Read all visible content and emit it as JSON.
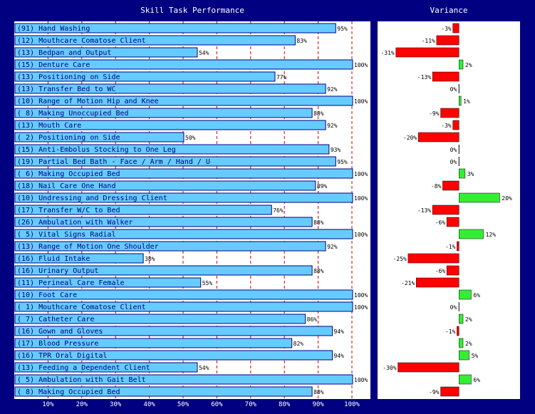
{
  "chart_data": [
    {
      "type": "bar",
      "title": "Skill Task Performance",
      "orientation": "horizontal",
      "xlim": [
        0,
        100
      ],
      "x_ticks": [
        "10%",
        "20%",
        "30%",
        "40%",
        "50%",
        "60%",
        "70%",
        "80%",
        "90%",
        "100%"
      ],
      "bar_color": "#66ccff",
      "gridline_color": "#cc0000",
      "categories": [
        "(91) Hand Washing",
        "(12) Mouthcare Comatose Client",
        "(13) Bedpan and Output",
        "(15) Denture Care",
        "(13) Positioning on Side",
        "(13) Transfer Bed to WC",
        "(10) Range of Motion Hip and Knee",
        "( 8) Making Unoccupied Bed",
        "(13) Mouth Care",
        "( 2) Positioning on Side",
        "(15) Anti-Embolus Stocking to One Leg",
        "(19) Partial Bed Bath - Face / Arm / Hand / U",
        "( 6) Making Occupied Bed",
        "(18) Nail Care One Hand",
        "(10) Undressing and Dressing Client",
        "(17) Transfer W/C to Bed",
        "(26) Ambulation with Walker",
        "( 5) Vital Signs Radial",
        "(13) Range of Motion One Shoulder",
        "(16) Fluid Intake",
        "(16) Urinary Output",
        "(11) Perineal Care Female",
        "(10) Foot Care",
        "( 1) Mouthcare Comatose Client",
        "( 7) Catheter Care",
        "(16) Gown and Gloves",
        "(17) Blood Pressure",
        "(16) TPR Oral Digital",
        "(13) Feeding a Dependent Client",
        "( 5) Ambulation with Gait Belt",
        "( 8) Making Occupied Bed"
      ],
      "values": [
        95,
        83,
        54,
        100,
        77,
        92,
        100,
        88,
        92,
        50,
        93,
        95,
        100,
        89,
        100,
        76,
        88,
        100,
        92,
        38,
        88,
        55,
        100,
        100,
        86,
        94,
        82,
        94,
        54,
        100,
        88
      ],
      "value_labels": [
        "95%",
        "83%",
        "54%",
        "100%",
        "77%",
        "92%",
        "100%",
        "88%",
        "92%",
        "50%",
        "93%",
        "95%",
        "100%",
        "89%",
        "100%",
        "76%",
        "88%",
        "100%",
        "92%",
        "38%",
        "88%",
        "55%",
        "100%",
        "100%",
        "86%",
        "94%",
        "82%",
        "94%",
        "54%",
        "100%",
        "88%"
      ]
    },
    {
      "type": "bar",
      "title": "Variance",
      "orientation": "horizontal",
      "xlim": [
        -40,
        30
      ],
      "positive_color": "#33ee33",
      "negative_color": "#ff0000",
      "values": [
        -3,
        -11,
        -31,
        2,
        -13,
        0,
        1,
        -9,
        -3,
        -20,
        0,
        0,
        3,
        -8,
        20,
        -13,
        -6,
        12,
        -1,
        -25,
        -6,
        -21,
        6,
        0,
        2,
        -1,
        2,
        5,
        -30,
        6,
        -9
      ],
      "value_labels": [
        "-3%",
        "-11%",
        "-31%",
        "2%",
        "-13%",
        "0%",
        "1%",
        "-9%",
        "-3%",
        "-20%",
        "0%",
        "0%",
        "3%",
        "-8%",
        "20%",
        "-13%",
        "-6%",
        "12%",
        "-1%",
        "-25%",
        "-6%",
        "-21%",
        "6%",
        "0%",
        "2%",
        "-1%",
        "2%",
        "5%",
        "-30%",
        "6%",
        "-9%"
      ]
    }
  ]
}
